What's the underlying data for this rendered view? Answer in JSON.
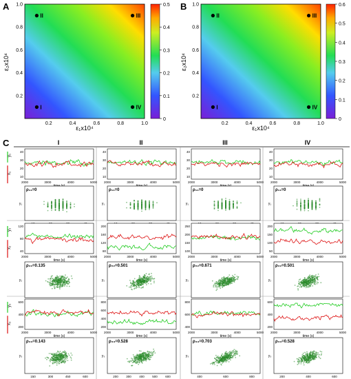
{
  "panels": {
    "a": "A",
    "b": "B",
    "c": "C"
  },
  "heatmaps": [
    {
      "xlabel": "ε₁x10⁴",
      "ylabel": "ε₂x10⁴",
      "xticks": [
        "0.2",
        "0.4",
        "0.6",
        "0.8",
        "1.0"
      ],
      "yticks": [
        "0.2",
        "0.4",
        "0.6",
        "0.8",
        "1.0"
      ],
      "cbar_ticks": [
        "0.5",
        "0.4",
        "0.3",
        "0.2",
        "0.1",
        "0"
      ],
      "points": [
        {
          "label": "I",
          "x": 0.1,
          "y": 0.1
        },
        {
          "label": "II",
          "x": 0.1,
          "y": 0.9
        },
        {
          "label": "III",
          "x": 0.9,
          "y": 0.9
        },
        {
          "label": "IV",
          "x": 0.9,
          "y": 0.1
        }
      ]
    },
    {
      "xlabel": "ε₁x10⁴",
      "ylabel": "ε₂x10⁴",
      "xticks": [
        "0.2",
        "0.4",
        "0.6",
        "0.8",
        "1.0"
      ],
      "yticks": [
        "0.2",
        "0.4",
        "0.6",
        "0.8",
        "1.0"
      ],
      "cbar_ticks": [
        "0.6",
        "0.5",
        "0.4",
        "0.3",
        "0.2",
        "0.1",
        "0"
      ],
      "points": [
        {
          "label": "I",
          "x": 0.1,
          "y": 0.1
        },
        {
          "label": "II",
          "x": 0.1,
          "y": 0.9
        },
        {
          "label": "III",
          "x": 0.9,
          "y": 0.9
        },
        {
          "label": "IV",
          "x": 0.9,
          "y": 0.1
        }
      ]
    }
  ],
  "columns": [
    "I",
    "II",
    "III",
    "IV"
  ],
  "colors": {
    "green": "#22cc22",
    "red": "#dd1111",
    "scatter": "#2a8a2a"
  },
  "time_axis": {
    "label": "time (s)",
    "ticks": [
      "2000",
      "3000",
      "4000",
      "5000"
    ]
  },
  "rows": [
    {
      "ts_ylabels": [
        "x₁",
        "y₁"
      ],
      "ts_yticks": [
        [
          "40",
          "30",
          "20",
          "10"
        ],
        [
          "40",
          "30",
          "20",
          "10"
        ],
        [
          "40",
          "30",
          "20",
          "10"
        ],
        [
          "40",
          "30",
          "20",
          "10"
        ]
      ],
      "sc_ylabel": "y₁",
      "sc_xlabel": "x₁",
      "corr": [
        "ρ₁₁=0",
        "ρ₁₁=0",
        "ρ₁₁=0",
        "ρ₁₁=0"
      ],
      "sc_xticks": [
        [
          "10",
          "20",
          "30",
          "40"
        ],
        [
          "10",
          "20",
          "30",
          "40"
        ],
        [
          "10",
          "20",
          "30",
          "40"
        ],
        [
          "10",
          "20",
          "30",
          "40"
        ]
      ]
    },
    {
      "ts_ylabels": [
        "x₂",
        "y₂"
      ],
      "ts_yticks": [
        [
          "120",
          "80",
          "40"
        ],
        [
          "200",
          "160",
          "120",
          "80"
        ],
        [
          "250",
          "200",
          "150",
          "100"
        ],
        [
          "200",
          "150",
          "100",
          "50"
        ]
      ],
      "sc_ylabel": "y₂",
      "sc_xlabel": "x₂",
      "corr": [
        "ρ₂₂=0.135",
        "ρ₂₂=0.501",
        "ρ₂₂=0.671",
        "ρ₂₂=0.501"
      ],
      "sc_xticks": [
        [
          "30",
          "60",
          "90",
          "120",
          "150"
        ],
        [
          "80",
          "120",
          "160",
          "200"
        ],
        [
          "100",
          "150",
          "200",
          "250"
        ],
        [
          "50",
          "100",
          "150"
        ]
      ]
    },
    {
      "ts_ylabels": [
        "x₃",
        "y₃"
      ],
      "ts_yticks": [
        [
          "600",
          "400",
          "200"
        ],
        [
          "800",
          "600",
          "400",
          "200"
        ],
        [
          "800",
          "600",
          "400"
        ],
        [
          "600",
          "400",
          "200"
        ]
      ],
      "sc_ylabel": "y₃",
      "sc_xlabel": "x₃",
      "corr": [
        "ρ₃₃=0.143",
        "ρ₃₃=0.528",
        "ρ₃₃=0.703",
        "ρ₃₃=0.528"
      ],
      "sc_xticks": [
        [
          "150",
          "300",
          "450",
          "600"
        ],
        [
          "200",
          "300",
          "400",
          "500",
          "600"
        ],
        [
          "400",
          "600",
          "800"
        ],
        [
          "200",
          "400",
          "600"
        ]
      ]
    }
  ]
}
